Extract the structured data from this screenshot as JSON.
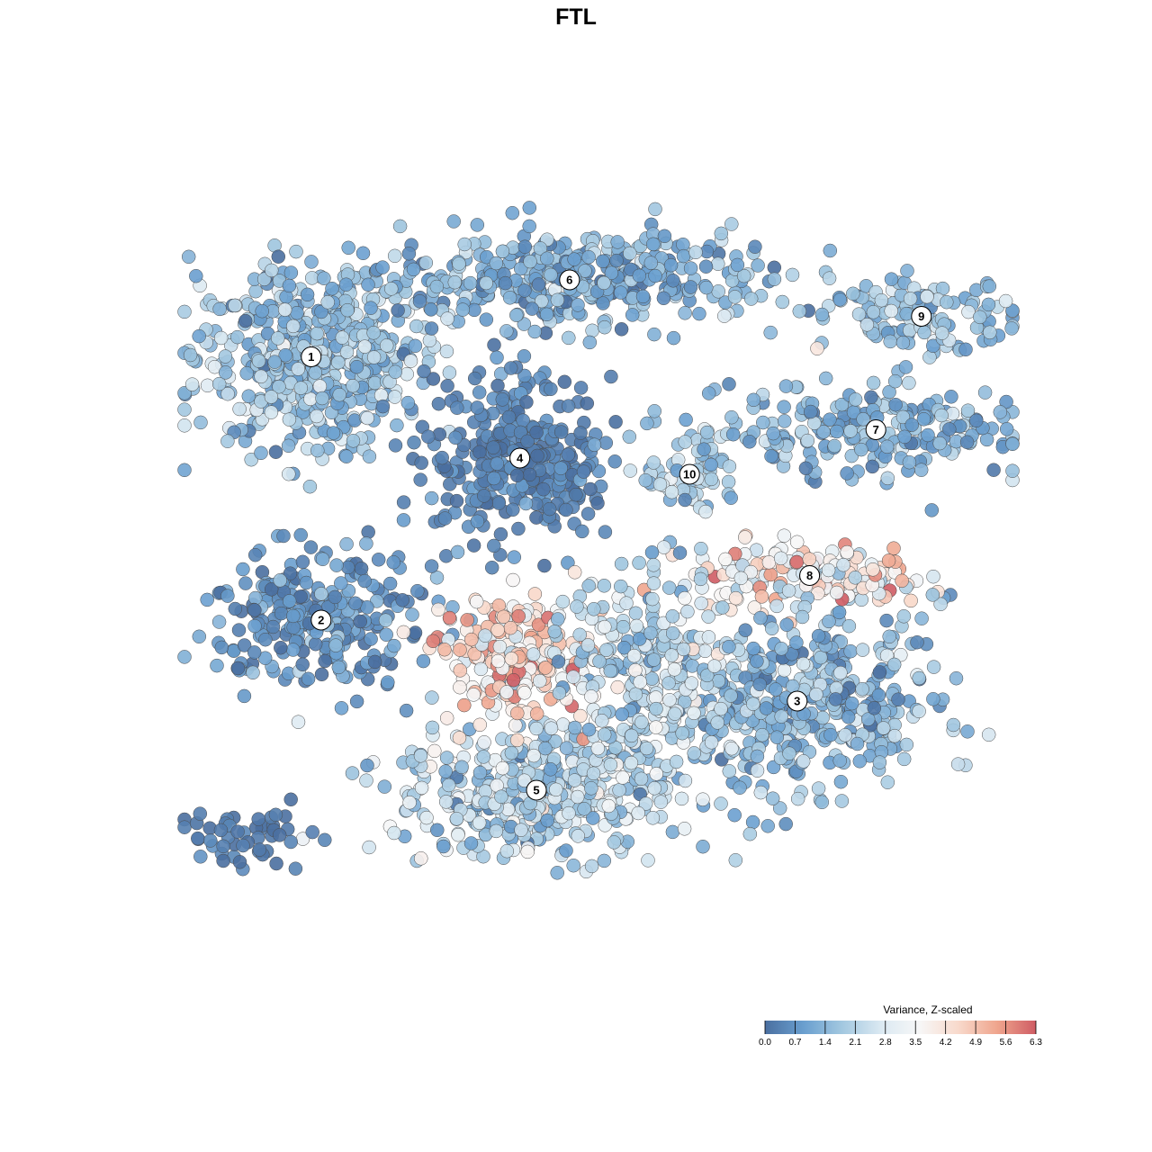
{
  "chart_data": {
    "type": "scatter",
    "title": "FTL",
    "xlabel": "",
    "ylabel": "",
    "xlim": [
      0,
      1
    ],
    "ylim": [
      0,
      1
    ],
    "grid": false,
    "axes_visible": false,
    "point_stroke_color": "#4a4a4a",
    "colorbar": {
      "title": "Variance, Z-scaled",
      "placement": "bottom-right",
      "min": 0.0,
      "max": 6.3,
      "ticks": [
        "0.0",
        "0.7",
        "1.4",
        "2.1",
        "2.8",
        "3.5",
        "4.2",
        "4.9",
        "5.6",
        "6.3"
      ],
      "colors": [
        "#4a6fa0",
        "#6a9fcf",
        "#a3c8e0",
        "#dbe9f2",
        "#f7f7f7",
        "#f8d9cb",
        "#efa58d",
        "#cf5c64"
      ]
    },
    "clusters": [
      {
        "label": "1",
        "x": 0.153,
        "y": 0.765,
        "sx": 0.07,
        "sy": 0.055,
        "n": 520,
        "mean": 1.6,
        "sd": 0.65
      },
      {
        "label": "6",
        "x": 0.465,
        "y": 0.86,
        "sx": 0.12,
        "sy": 0.03,
        "n": 420,
        "mean": 1.2,
        "sd": 0.6
      },
      {
        "label": "4",
        "x": 0.405,
        "y": 0.64,
        "sx": 0.055,
        "sy": 0.05,
        "n": 320,
        "mean": 0.35,
        "sd": 0.3
      },
      {
        "label": "10",
        "x": 0.61,
        "y": 0.62,
        "sx": 0.03,
        "sy": 0.03,
        "n": 70,
        "mean": 1.9,
        "sd": 0.5
      },
      {
        "label": "9",
        "x": 0.89,
        "y": 0.815,
        "sx": 0.06,
        "sy": 0.02,
        "n": 120,
        "mean": 1.6,
        "sd": 0.7
      },
      {
        "label": "7",
        "x": 0.835,
        "y": 0.675,
        "sx": 0.09,
        "sy": 0.03,
        "n": 220,
        "mean": 1.3,
        "sd": 0.6
      },
      {
        "label": "8",
        "x": 0.755,
        "y": 0.495,
        "sx": 0.07,
        "sy": 0.02,
        "n": 160,
        "mean": 3.6,
        "sd": 1.3
      },
      {
        "label": "2",
        "x": 0.165,
        "y": 0.44,
        "sx": 0.07,
        "sy": 0.04,
        "n": 260,
        "mean": 0.7,
        "sd": 0.5
      },
      {
        "label": "3",
        "x": 0.74,
        "y": 0.34,
        "sx": 0.085,
        "sy": 0.055,
        "n": 430,
        "mean": 1.4,
        "sd": 0.7
      },
      {
        "label": "5",
        "x": 0.425,
        "y": 0.23,
        "sx": 0.085,
        "sy": 0.04,
        "n": 440,
        "mean": 2.1,
        "sd": 0.8
      },
      {
        "label": "",
        "x": 0.4,
        "y": 0.39,
        "sx": 0.045,
        "sy": 0.04,
        "n": 220,
        "mean": 4.2,
        "sd": 0.9
      },
      {
        "label": "",
        "x": 0.56,
        "y": 0.38,
        "sx": 0.06,
        "sy": 0.06,
        "n": 260,
        "mean": 2.2,
        "sd": 0.8
      },
      {
        "label": "",
        "x": 0.07,
        "y": 0.17,
        "sx": 0.04,
        "sy": 0.02,
        "n": 50,
        "mean": 0.2,
        "sd": 0.2
      }
    ]
  }
}
